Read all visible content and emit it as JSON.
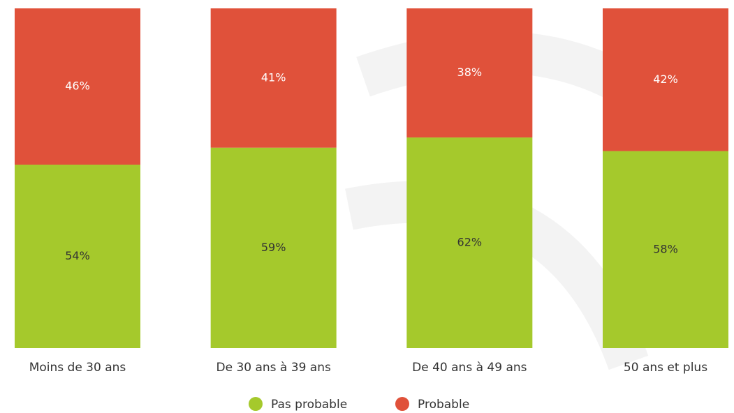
{
  "chart_data": {
    "type": "bar",
    "stacked": true,
    "categories": [
      "Moins de 30 ans",
      "De 30 ans à 39 ans",
      "De 40 ans à 49 ans",
      "50 ans et plus"
    ],
    "series": [
      {
        "name": "Pas probable",
        "color": "#a5c92c",
        "values": [
          54,
          59,
          62,
          58
        ],
        "value_labels": [
          "54%",
          "59%",
          "62%",
          "58%"
        ]
      },
      {
        "name": "Probable",
        "color": "#e0513a",
        "values": [
          46,
          41,
          38,
          42
        ],
        "value_labels": [
          "46%",
          "41%",
          "38%",
          "42%"
        ]
      }
    ],
    "ylim": [
      0,
      100
    ],
    "legend": "bottom"
  }
}
